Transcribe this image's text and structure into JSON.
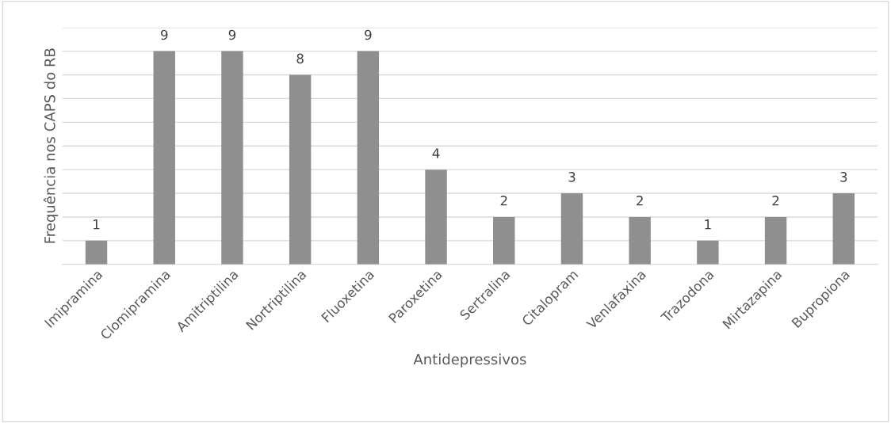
{
  "chart_data": {
    "type": "bar",
    "xlabel": "Antidepressivos",
    "ylabel": "Frequência nos CAPS do RB",
    "categories": [
      "Imipramina",
      "Clomipramina",
      "Amitriptilina",
      "Nortriptilina",
      "Fluoxetina",
      "Paroxetina",
      "Sertralina",
      "Citalopram",
      "Venlafaxina",
      "Trazodona",
      "Mirtazapina",
      "Bupropiona"
    ],
    "values": [
      1,
      9,
      9,
      8,
      9,
      4,
      2,
      3,
      2,
      1,
      2,
      3
    ],
    "color": "#8f8f8f",
    "ylim": [
      0,
      10
    ],
    "yticks": [
      {
        "value": 0,
        "label": null
      },
      {
        "value": 1,
        "label": null
      },
      {
        "value": 2,
        "label": null
      },
      {
        "value": 3,
        "label": null
      },
      {
        "value": 4,
        "label": null
      },
      {
        "value": 5,
        "label": null
      },
      {
        "value": 6,
        "label": null
      },
      {
        "value": 7,
        "label": null
      },
      {
        "value": 8,
        "label": null
      },
      {
        "value": 9,
        "label": null
      },
      {
        "value": 10,
        "label": null
      }
    ],
    "tick_labels": "x",
    "grid": "y",
    "data_labels": true
  }
}
